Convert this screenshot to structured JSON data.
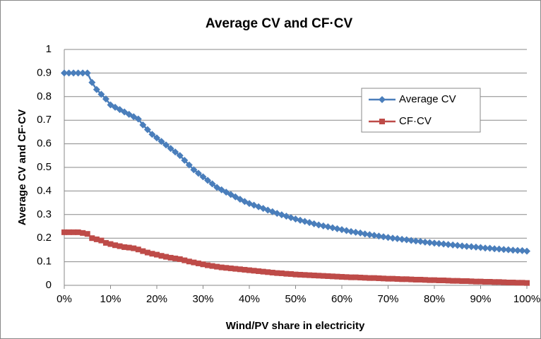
{
  "chart_data": {
    "type": "line",
    "title": "Average CV and CF·CV",
    "x_label": "Wind/PV share in electricity",
    "y_label": "Average CV and CF·CV",
    "x": [
      0,
      1,
      2,
      3,
      4,
      5,
      6,
      7,
      8,
      9,
      10,
      11,
      12,
      13,
      14,
      15,
      16,
      17,
      18,
      19,
      20,
      21,
      22,
      23,
      24,
      25,
      26,
      27,
      28,
      29,
      30,
      31,
      32,
      33,
      34,
      35,
      36,
      37,
      38,
      39,
      40,
      41,
      42,
      43,
      44,
      45,
      46,
      47,
      48,
      49,
      50,
      51,
      52,
      53,
      54,
      55,
      56,
      57,
      58,
      59,
      60,
      61,
      62,
      63,
      64,
      65,
      66,
      67,
      68,
      69,
      70,
      71,
      72,
      73,
      74,
      75,
      76,
      77,
      78,
      79,
      80,
      81,
      82,
      83,
      84,
      85,
      86,
      87,
      88,
      89,
      90,
      91,
      92,
      93,
      94,
      95,
      96,
      97,
      98,
      99,
      100
    ],
    "series": [
      {
        "name": "Average CV",
        "color": "#4a7ebb",
        "marker": "diamond",
        "values": [
          0.9,
          0.9,
          0.9,
          0.9,
          0.9,
          0.9,
          0.86,
          0.83,
          0.81,
          0.79,
          0.765,
          0.755,
          0.745,
          0.735,
          0.725,
          0.715,
          0.705,
          0.68,
          0.66,
          0.64,
          0.625,
          0.61,
          0.595,
          0.58,
          0.565,
          0.55,
          0.53,
          0.51,
          0.49,
          0.475,
          0.46,
          0.445,
          0.43,
          0.415,
          0.405,
          0.395,
          0.385,
          0.375,
          0.365,
          0.355,
          0.347,
          0.34,
          0.333,
          0.326,
          0.319,
          0.312,
          0.305,
          0.299,
          0.293,
          0.287,
          0.281,
          0.276,
          0.271,
          0.266,
          0.261,
          0.256,
          0.252,
          0.248,
          0.244,
          0.24,
          0.236,
          0.232,
          0.228,
          0.225,
          0.222,
          0.218,
          0.215,
          0.212,
          0.209,
          0.206,
          0.203,
          0.2,
          0.198,
          0.195,
          0.193,
          0.19,
          0.188,
          0.186,
          0.183,
          0.181,
          0.179,
          0.177,
          0.175,
          0.173,
          0.171,
          0.169,
          0.167,
          0.165,
          0.164,
          0.162,
          0.16,
          0.158,
          0.157,
          0.155,
          0.154,
          0.152,
          0.151,
          0.149,
          0.148,
          0.147,
          0.145
        ]
      },
      {
        "name": "CF·CV",
        "color": "#be4b48",
        "marker": "square",
        "values": [
          0.225,
          0.225,
          0.225,
          0.225,
          0.222,
          0.218,
          0.2,
          0.195,
          0.19,
          0.18,
          0.175,
          0.17,
          0.166,
          0.162,
          0.16,
          0.157,
          0.152,
          0.145,
          0.139,
          0.134,
          0.13,
          0.125,
          0.121,
          0.117,
          0.114,
          0.111,
          0.106,
          0.101,
          0.097,
          0.093,
          0.089,
          0.085,
          0.082,
          0.079,
          0.076,
          0.074,
          0.072,
          0.07,
          0.068,
          0.066,
          0.064,
          0.062,
          0.06,
          0.058,
          0.056,
          0.054,
          0.052,
          0.051,
          0.049,
          0.048,
          0.046,
          0.045,
          0.044,
          0.043,
          0.042,
          0.041,
          0.04,
          0.039,
          0.038,
          0.037,
          0.036,
          0.035,
          0.034,
          0.034,
          0.033,
          0.032,
          0.031,
          0.031,
          0.03,
          0.029,
          0.028,
          0.028,
          0.027,
          0.026,
          0.026,
          0.025,
          0.024,
          0.024,
          0.023,
          0.022,
          0.022,
          0.021,
          0.021,
          0.02,
          0.019,
          0.019,
          0.018,
          0.018,
          0.017,
          0.016,
          0.016,
          0.015,
          0.015,
          0.014,
          0.014,
          0.013,
          0.012,
          0.012,
          0.011,
          0.011,
          0.01
        ]
      }
    ],
    "xlim": [
      0,
      100
    ],
    "xticks": [
      {
        "value": 0,
        "label": "0%"
      },
      {
        "value": 10,
        "label": "10%"
      },
      {
        "value": 20,
        "label": "20%"
      },
      {
        "value": 30,
        "label": "30%"
      },
      {
        "value": 40,
        "label": "40%"
      },
      {
        "value": 50,
        "label": "50%"
      },
      {
        "value": 60,
        "label": "60%"
      },
      {
        "value": 70,
        "label": "70%"
      },
      {
        "value": 80,
        "label": "80%"
      },
      {
        "value": 90,
        "label": "90%"
      },
      {
        "value": 100,
        "label": "100%"
      }
    ],
    "ylim": [
      0,
      1
    ],
    "yticks": [
      0,
      0.1,
      0.2,
      0.3,
      0.4,
      0.5,
      0.6,
      0.7,
      0.8,
      0.9,
      1
    ],
    "grid": true,
    "legend": "right"
  }
}
